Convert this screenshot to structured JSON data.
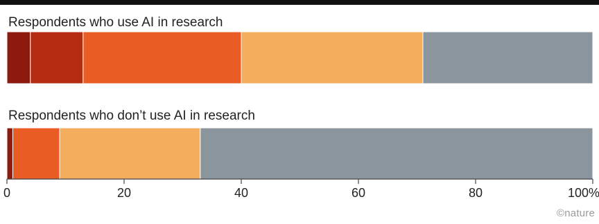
{
  "chart_data": {
    "type": "bar",
    "orientation": "horizontal",
    "stacked": true,
    "xlim": [
      0,
      100
    ],
    "x_ticks": [
      "0",
      "20",
      "40",
      "60",
      "80",
      "100%"
    ],
    "x_tick_values": [
      0,
      20,
      40,
      60,
      80,
      100
    ],
    "categories": [
      "Respondents who use AI in research",
      "Respondents who don’t use AI in research"
    ],
    "series": [
      {
        "color": "#8e1a0e",
        "values": [
          4,
          1
        ]
      },
      {
        "color": "#b52c12",
        "values": [
          9,
          0
        ]
      },
      {
        "color": "#e95c24",
        "values": [
          27,
          8
        ]
      },
      {
        "color": "#f4ad5c",
        "values": [
          31,
          24
        ]
      },
      {
        "color": "#8b959e",
        "values": [
          29,
          67
        ]
      }
    ],
    "legend": "none",
    "grid": false
  },
  "credit": "©nature"
}
